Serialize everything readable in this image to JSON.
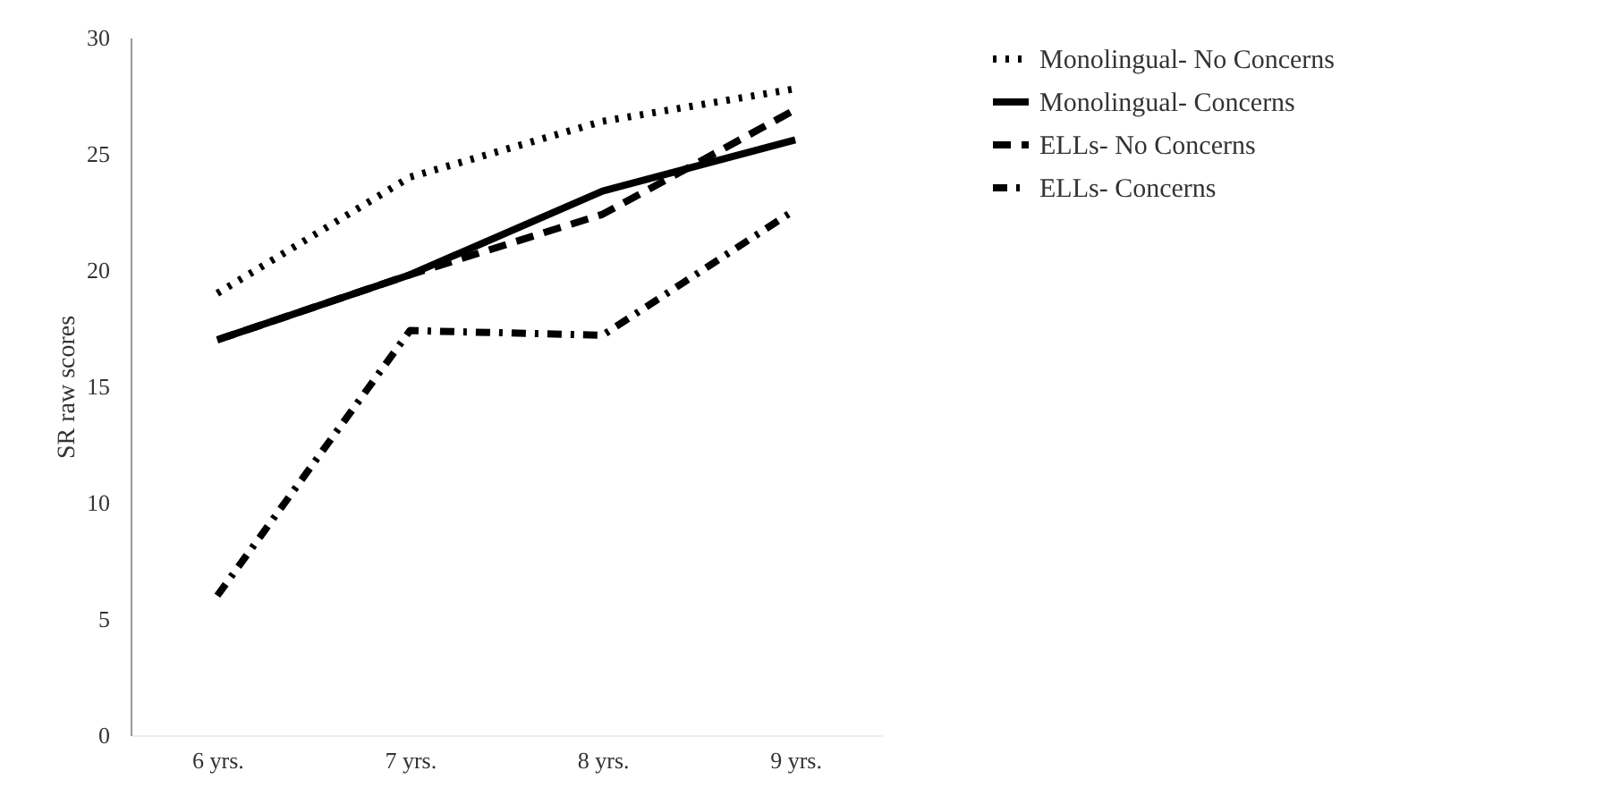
{
  "chart_data": {
    "type": "line",
    "ylabel": "SR raw scores",
    "categories": [
      "6 yrs.",
      "7 yrs.",
      "8 yrs.",
      "9 yrs."
    ],
    "series": [
      {
        "name": "Monolingual- No Concerns",
        "color": "#000000",
        "line_style": "dotted",
        "values": [
          19,
          24,
          26.4,
          27.8
        ]
      },
      {
        "name": "Monolingual- Concerns",
        "color": "#000000",
        "line_style": "solid",
        "values": [
          17,
          19.8,
          23.4,
          25.6
        ]
      },
      {
        "name": "ELLs- No Concerns",
        "color": "#000000",
        "line_style": "dashed",
        "values": [
          17,
          19.8,
          22.4,
          26.9
        ]
      },
      {
        "name": "ELLs- Concerns",
        "color": "#000000",
        "line_style": "dashdot",
        "values": [
          6,
          17.4,
          17.2,
          22.6
        ]
      }
    ],
    "ylim": [
      0,
      30
    ],
    "yticks": [
      0,
      5,
      10,
      15,
      20,
      25,
      30
    ],
    "grid": false,
    "legend": "right",
    "marker": "none"
  }
}
